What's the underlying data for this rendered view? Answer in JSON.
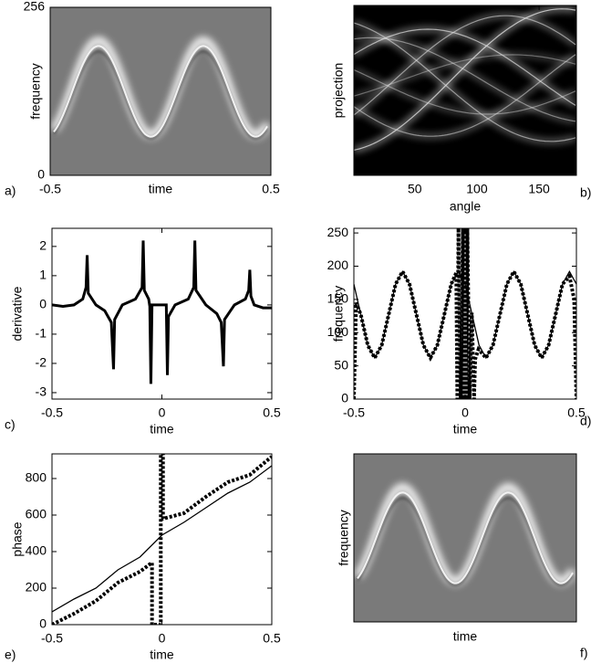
{
  "chart_data": [
    {
      "type": "image",
      "panel_label": "a)",
      "xlabel": "time",
      "ylabel": "frequency",
      "xlim": [
        -0.5,
        0.5
      ],
      "xticks": [
        -0.5,
        0.5
      ],
      "ylim": [
        0,
        256
      ],
      "yticks": [
        0,
        256
      ]
    },
    {
      "type": "image",
      "panel_label": "b)",
      "xlabel": "angle",
      "ylabel": "projection",
      "xlim": [
        1,
        180
      ],
      "xticks": [
        50,
        100,
        150
      ]
    },
    {
      "type": "line",
      "panel_label": "c)",
      "xlabel": "time",
      "ylabel": "derivative",
      "xlim": [
        -0.5,
        0.5
      ],
      "xticks": [
        -0.5,
        0,
        0.5
      ],
      "ylim": [
        -3.22,
        2.62
      ],
      "yticks": [
        -3,
        -2,
        -1,
        0,
        1,
        2
      ],
      "series": [
        {
          "color": "#000000",
          "style": "solid",
          "x": [
            -0.5,
            -0.45,
            -0.4,
            -0.36,
            -0.345,
            -0.34,
            -0.335,
            -0.3,
            -0.26,
            -0.23,
            -0.22,
            -0.215,
            -0.18,
            -0.12,
            -0.09,
            -0.085,
            -0.08,
            -0.06,
            -0.055,
            -0.05,
            -0.045,
            0.02,
            0.025,
            0.03,
            0.06,
            0.12,
            0.145,
            0.15,
            0.155,
            0.2,
            0.25,
            0.27,
            0.28,
            0.285,
            0.33,
            0.38,
            0.395,
            0.4,
            0.405,
            0.42,
            0.46,
            0.5
          ],
          "values": [
            0,
            -0.05,
            0,
            0.2,
            0.6,
            1.7,
            0.4,
            0,
            -0.2,
            -0.6,
            -2.2,
            -0.5,
            0,
            0.2,
            0.6,
            2.2,
            0.5,
            0.2,
            -0.05,
            -2.7,
            0,
            0,
            -2.4,
            -0.4,
            0,
            0.2,
            0.6,
            2.2,
            0.5,
            0,
            -0.3,
            -0.6,
            -2.1,
            -0.5,
            0,
            0.2,
            0.5,
            1.2,
            0.3,
            0,
            -0.1,
            -0.1
          ]
        }
      ]
    },
    {
      "type": "line",
      "panel_label": "d)",
      "xlabel": "time",
      "ylabel": "frequency",
      "xlim": [
        -0.5,
        0.5
      ],
      "xticks": [
        -0.5,
        0,
        0.5
      ],
      "ylim": [
        0,
        257
      ],
      "yticks": [
        0,
        50,
        100,
        150,
        200,
        250
      ],
      "series": [
        {
          "color": "#000000",
          "style": "solid",
          "x": [
            -0.5,
            -0.46875,
            -0.4375,
            -0.40625,
            -0.375,
            -0.34375,
            -0.3125,
            -0.28125,
            -0.25,
            -0.21875,
            -0.1875,
            -0.15625,
            -0.125,
            -0.09375,
            -0.0625,
            -0.03125,
            0,
            0.03125,
            0.0625,
            0.09375,
            0.125,
            0.15625,
            0.1875,
            0.21875,
            0.25,
            0.28125,
            0.3125,
            0.34375,
            0.375,
            0.40625,
            0.4375,
            0.46875,
            0.5
          ],
          "values": [
            173,
            127,
            81,
            62,
            81,
            127,
            173,
            192,
            173,
            127,
            81,
            62,
            81,
            127,
            173,
            192,
            173,
            127,
            81,
            62,
            81,
            127,
            173,
            192,
            173,
            127,
            81,
            62,
            81,
            127,
            173,
            192,
            173
          ]
        },
        {
          "color": "#000000",
          "style": "dotted",
          "x": [
            -0.5,
            -0.49,
            -0.46875,
            -0.4375,
            -0.40625,
            -0.375,
            -0.34375,
            -0.3125,
            -0.28125,
            -0.25,
            -0.21875,
            -0.1875,
            -0.15625,
            -0.125,
            -0.09375,
            -0.0625,
            -0.04,
            -0.035,
            -0.03,
            -0.02,
            -0.01,
            -0.005,
            0,
            0.005,
            0.01,
            0.02,
            0.03,
            0.04,
            0.045,
            0.06,
            0.09375,
            0.125,
            0.15625,
            0.1875,
            0.21875,
            0.25,
            0.28125,
            0.3125,
            0.34375,
            0.375,
            0.40625,
            0.4375,
            0.46875,
            0.49,
            0.5
          ],
          "values": [
            0,
            145,
            127,
            81,
            62,
            81,
            127,
            173,
            192,
            173,
            127,
            81,
            62,
            81,
            127,
            173,
            190,
            0,
            257,
            0,
            257,
            0,
            257,
            0,
            257,
            0,
            130,
            0,
            60,
            75,
            62,
            81,
            127,
            173,
            192,
            173,
            127,
            81,
            62,
            81,
            127,
            173,
            185,
            150,
            0
          ]
        }
      ]
    },
    {
      "type": "line",
      "panel_label": "e)",
      "xlabel": "time",
      "ylabel": "phase",
      "xlim": [
        -0.5,
        0.5
      ],
      "xticks": [
        -0.5,
        0,
        0.5
      ],
      "ylim": [
        0,
        935
      ],
      "yticks": [
        0,
        200,
        400,
        600,
        800
      ],
      "series": [
        {
          "color": "#000000",
          "style": "solid",
          "x": [
            -0.5,
            -0.4,
            -0.3,
            -0.2,
            -0.1,
            0,
            0.1,
            0.2,
            0.3,
            0.4,
            0.5
          ],
          "values": [
            70,
            140,
            200,
            300,
            370,
            490,
            560,
            640,
            720,
            780,
            870
          ]
        },
        {
          "color": "#000000",
          "style": "dotted",
          "x": [
            -0.5,
            -0.4,
            -0.3,
            -0.2,
            -0.1,
            -0.045,
            -0.045,
            -0.005,
            -0.005,
            0.005,
            0.005,
            0.1,
            0.2,
            0.3,
            0.4,
            0.5
          ],
          "values": [
            0,
            60,
            130,
            230,
            290,
            340,
            0,
            0,
            935,
            935,
            580,
            610,
            700,
            780,
            820,
            920
          ]
        }
      ]
    },
    {
      "type": "image",
      "panel_label": "f)",
      "xlabel": "time",
      "ylabel": "frequency"
    }
  ]
}
